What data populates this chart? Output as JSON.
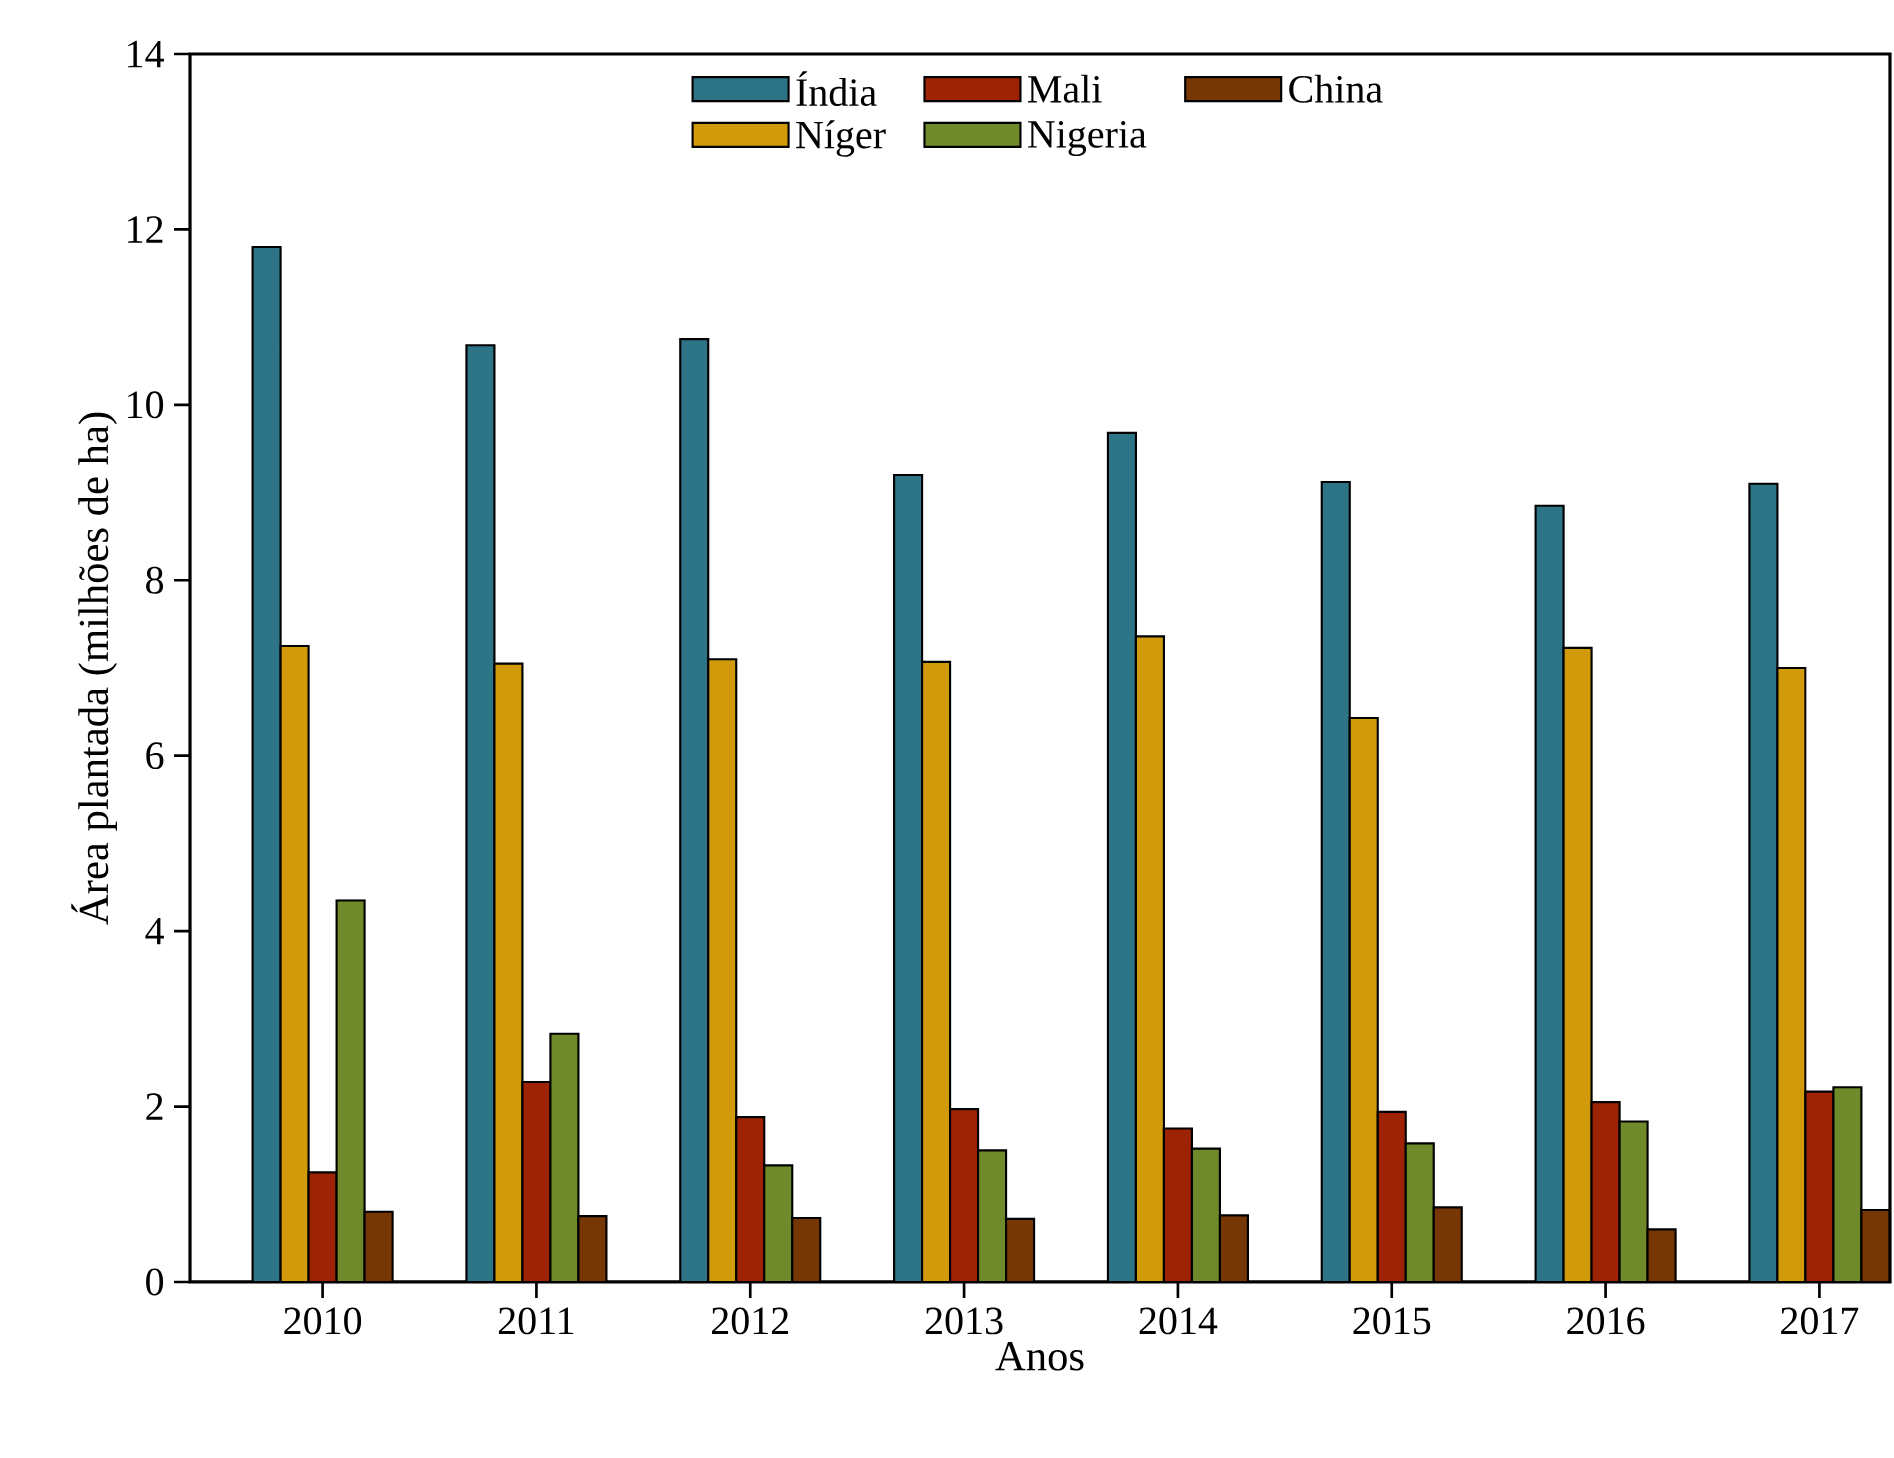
{
  "chart_data": {
    "type": "bar",
    "xlabel": "Anos",
    "ylabel": "Área plantada (milhões de ha)",
    "categories": [
      "2010",
      "2011",
      "2012",
      "2013",
      "2014",
      "2015",
      "2016",
      "2017"
    ],
    "series": [
      {
        "name": "Índia",
        "color": "#2e7487",
        "values": [
          11.8,
          10.68,
          10.75,
          9.2,
          9.68,
          9.12,
          8.85,
          9.1
        ]
      },
      {
        "name": "Níger",
        "color": "#d19a0a",
        "values": [
          7.25,
          7.05,
          7.1,
          7.07,
          7.36,
          6.43,
          7.23,
          7.0
        ]
      },
      {
        "name": "Mali",
        "color": "#9e2305",
        "values": [
          1.25,
          2.28,
          1.88,
          1.97,
          1.75,
          1.94,
          2.05,
          2.17
        ]
      },
      {
        "name": "Nigeria",
        "color": "#6e8a2a",
        "values": [
          4.35,
          2.83,
          1.33,
          1.5,
          1.52,
          1.58,
          1.83,
          2.22
        ]
      },
      {
        "name": "China",
        "color": "#773705",
        "values": [
          0.8,
          0.75,
          0.73,
          0.72,
          0.76,
          0.85,
          0.6,
          0.82
        ]
      }
    ],
    "ylim": [
      0,
      14
    ],
    "yticks": [
      0,
      2,
      4,
      6,
      8,
      10,
      12,
      14
    ],
    "legend": "top"
  }
}
